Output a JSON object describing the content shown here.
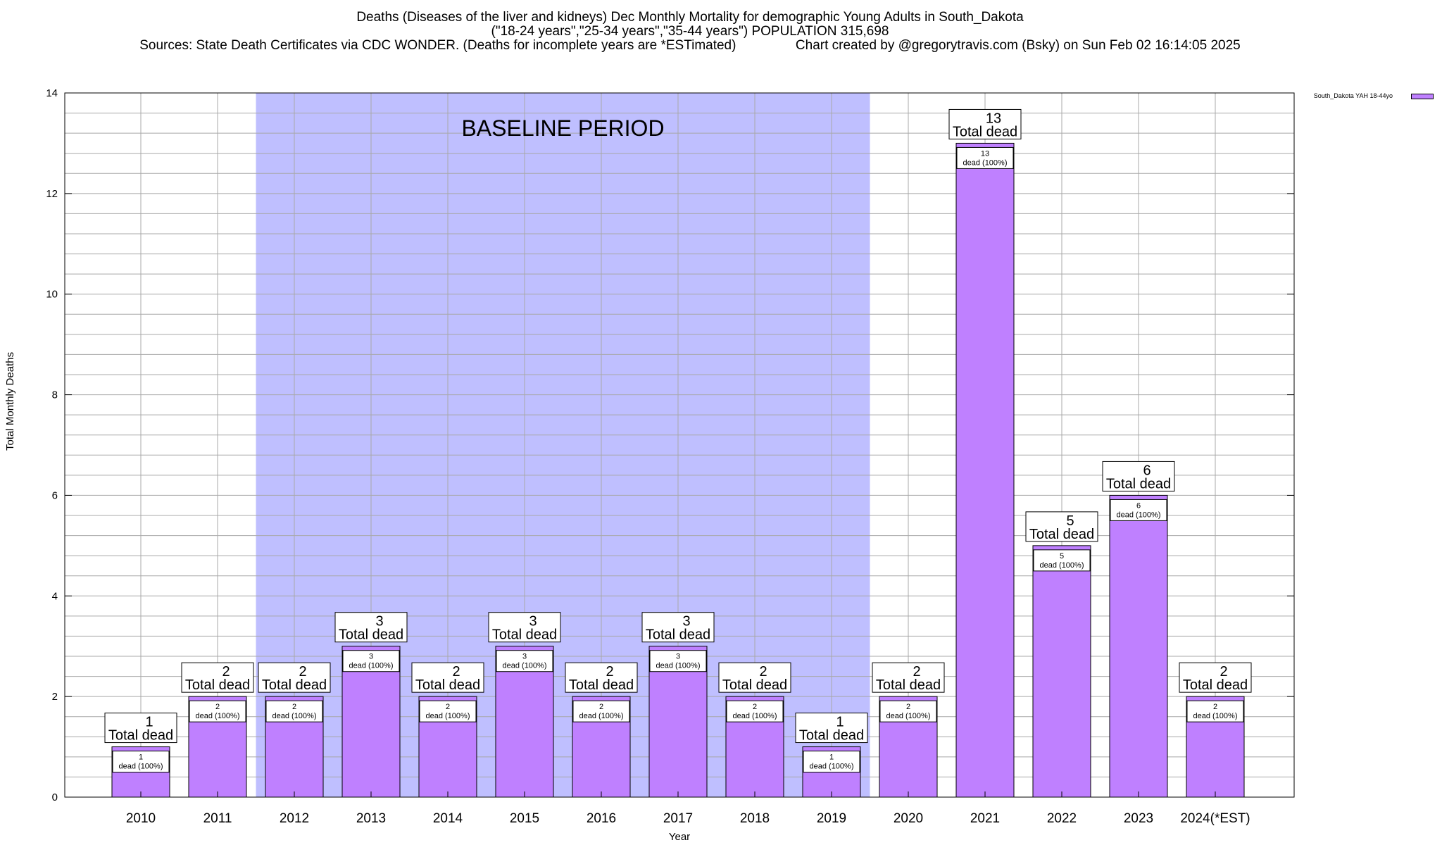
{
  "chart_data": {
    "type": "bar",
    "title_lines": [
      "Deaths (Diseases of the liver and kidneys) Dec Monthly Mortality for demographic Young Adults in South_Dakota",
      "(\"18-24 years\",\"25-34 years\",\"35-44 years\") POPULATION 315,698",
      "Sources: State Death Certificates via CDC WONDER. (Deaths for incomplete years are *ESTimated)                Chart created by @gregorytravis.com (Bsky) on Sun Feb 02 16:14:05 2025"
    ],
    "xlabel": "Year",
    "ylabel": "Total Monthly Deaths",
    "ylim": [
      0,
      14
    ],
    "yticks": [
      0,
      2,
      4,
      6,
      8,
      10,
      12,
      14
    ],
    "categories": [
      "2010",
      "2011",
      "2012",
      "2013",
      "2014",
      "2015",
      "2016",
      "2017",
      "2018",
      "2019",
      "2020",
      "2021",
      "2022",
      "2023",
      "2024(*EST)"
    ],
    "series": [
      {
        "name": "South_Dakota YAH 18-44yo",
        "color": "#bf80ff",
        "values": [
          1,
          2,
          2,
          3,
          2,
          3,
          2,
          3,
          2,
          1,
          2,
          13,
          5,
          6,
          2
        ]
      }
    ],
    "total_label_word": "Total dead",
    "segment_label_suffix": "dead (100%)",
    "baseline": {
      "label": "BASELINE PERIOD",
      "from": "2012",
      "to": "2019",
      "color": "#bfbfff"
    },
    "grid": true,
    "legend_position": "top-right"
  }
}
